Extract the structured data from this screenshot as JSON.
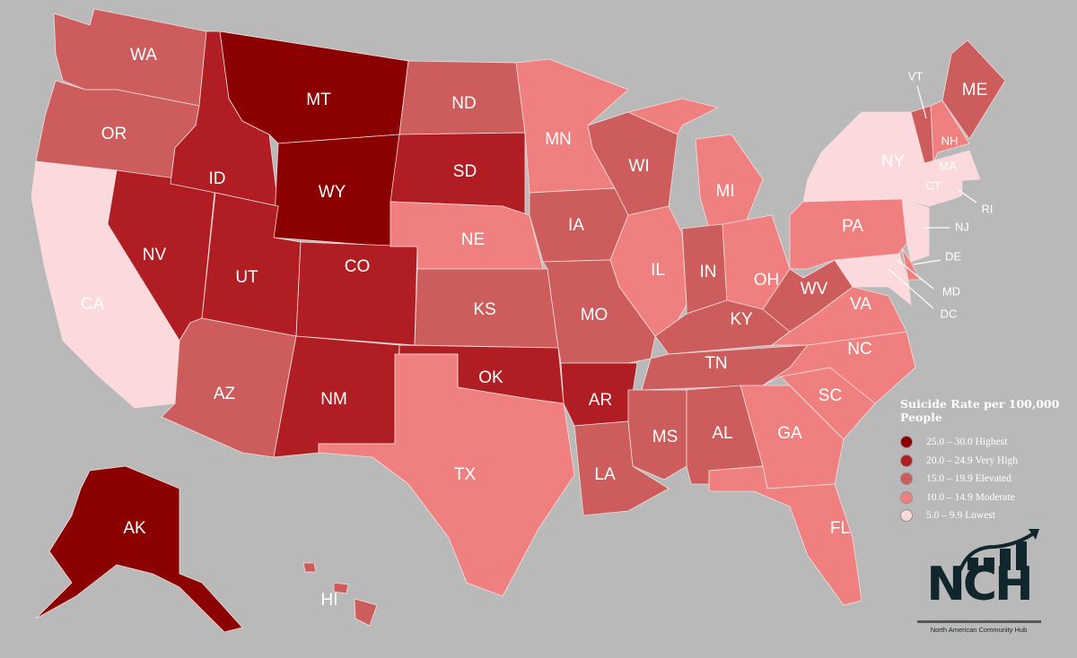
{
  "legend": {
    "title": "Suicide Rate per 100,000 People",
    "items": [
      {
        "label": "25.0 – 30.0 Highest",
        "color": "#8b0000"
      },
      {
        "label": "20.0 – 24.9 Very High",
        "color": "#b01e23"
      },
      {
        "label": "15.0 – 19.9 Elevated",
        "color": "#cd5c5c"
      },
      {
        "label": "10.0 – 14.9 Moderate",
        "color": "#f08080"
      },
      {
        "label": "5.0 – 9.9 Lowest",
        "color": "#fbd9dc"
      }
    ]
  },
  "states": [
    {
      "code": "WA",
      "level": 2
    },
    {
      "code": "OR",
      "level": 2
    },
    {
      "code": "CA",
      "level": 4
    },
    {
      "code": "NV",
      "level": 1
    },
    {
      "code": "ID",
      "level": 1
    },
    {
      "code": "MT",
      "level": 0
    },
    {
      "code": "WY",
      "level": 0
    },
    {
      "code": "UT",
      "level": 1
    },
    {
      "code": "CO",
      "level": 1
    },
    {
      "code": "AZ",
      "level": 2
    },
    {
      "code": "NM",
      "level": 1
    },
    {
      "code": "ND",
      "level": 2
    },
    {
      "code": "SD",
      "level": 1
    },
    {
      "code": "NE",
      "level": 3
    },
    {
      "code": "KS",
      "level": 2
    },
    {
      "code": "OK",
      "level": 1
    },
    {
      "code": "TX",
      "level": 3
    },
    {
      "code": "MN",
      "level": 3
    },
    {
      "code": "IA",
      "level": 2
    },
    {
      "code": "MO",
      "level": 2
    },
    {
      "code": "AR",
      "level": 1
    },
    {
      "code": "LA",
      "level": 2
    },
    {
      "code": "WI",
      "level": 2
    },
    {
      "code": "IL",
      "level": 3
    },
    {
      "code": "MI",
      "level": 3
    },
    {
      "code": "IN",
      "level": 2
    },
    {
      "code": "OH",
      "level": 3
    },
    {
      "code": "KY",
      "level": 2
    },
    {
      "code": "TN",
      "level": 2
    },
    {
      "code": "MS",
      "level": 2
    },
    {
      "code": "AL",
      "level": 2
    },
    {
      "code": "GA",
      "level": 3
    },
    {
      "code": "FL",
      "level": 3
    },
    {
      "code": "SC",
      "level": 3
    },
    {
      "code": "NC",
      "level": 3
    },
    {
      "code": "VA",
      "level": 3
    },
    {
      "code": "WV",
      "level": 2
    },
    {
      "code": "PA",
      "level": 3
    },
    {
      "code": "NY",
      "level": 4
    },
    {
      "code": "NJ",
      "level": 4
    },
    {
      "code": "DE",
      "level": 3
    },
    {
      "code": "MD",
      "level": 4
    },
    {
      "code": "DC",
      "level": 4
    },
    {
      "code": "VT",
      "level": 2
    },
    {
      "code": "NH",
      "level": 3
    },
    {
      "code": "ME",
      "level": 2
    },
    {
      "code": "MA",
      "level": 4
    },
    {
      "code": "CT",
      "level": 4
    },
    {
      "code": "RI",
      "level": 4
    },
    {
      "code": "AK",
      "level": 0
    },
    {
      "code": "HI",
      "level": 2
    }
  ],
  "logo": {
    "mark": "NCH",
    "name": "North American Community Hub"
  }
}
